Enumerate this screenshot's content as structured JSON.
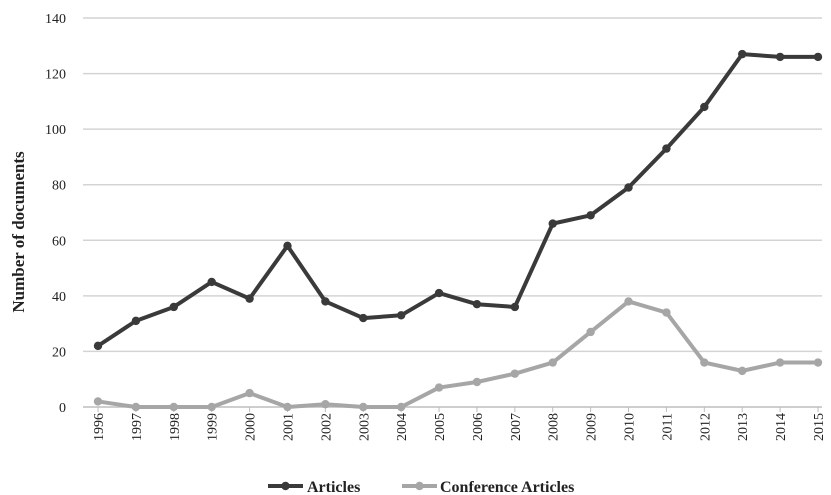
{
  "chart_data": {
    "type": "line",
    "title": "",
    "xlabel": "",
    "ylabel": "Number of documents",
    "ylim": [
      0,
      140
    ],
    "yticks": [
      0,
      20,
      40,
      60,
      80,
      100,
      120,
      140
    ],
    "grid": true,
    "legend_position": "bottom",
    "categories": [
      "1996",
      "1997",
      "1998",
      "1999",
      "2000",
      "2001",
      "2002",
      "2003",
      "2004",
      "2005",
      "2006",
      "2007",
      "2008",
      "2009",
      "2010",
      "2011",
      "2012",
      "2013",
      "2014",
      "2015"
    ],
    "series": [
      {
        "name": "Articles",
        "color": "#3a3a3a",
        "values": [
          22,
          31,
          36,
          45,
          39,
          58,
          38,
          32,
          33,
          41,
          37,
          36,
          66,
          69,
          79,
          93,
          108,
          127,
          126,
          126
        ]
      },
      {
        "name": "Conference Articles",
        "color": "#a6a6a6",
        "values": [
          2,
          0,
          0,
          0,
          5,
          0,
          1,
          0,
          0,
          7,
          9,
          12,
          16,
          27,
          38,
          34,
          16,
          13,
          16,
          16
        ]
      }
    ]
  }
}
